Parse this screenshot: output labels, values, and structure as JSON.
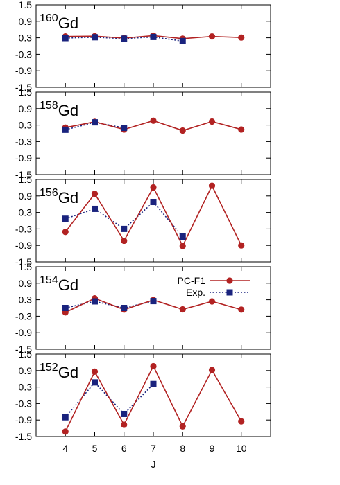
{
  "chart_data": [
    {
      "type": "line",
      "mass": "160",
      "element": "Gd",
      "x": [
        4,
        5,
        6,
        7,
        8,
        9,
        10
      ],
      "ylim": [
        -1.5,
        1.5
      ],
      "yticks": [
        "1.5",
        "0.9",
        "0.3",
        "-0.3",
        "-0.9",
        "-1.5"
      ],
      "series": [
        {
          "name": "PC-F1",
          "color": "#b22222",
          "marker": "circle",
          "style": "solid",
          "x": [
            4,
            5,
            6,
            7,
            8,
            9,
            10
          ],
          "values": [
            0.35,
            0.36,
            0.29,
            0.38,
            0.27,
            0.35,
            0.31
          ]
        },
        {
          "name": "Exp.",
          "color": "#1a237e",
          "marker": "square",
          "style": "dotted",
          "x": [
            4,
            5,
            6,
            7,
            8
          ],
          "values": [
            0.29,
            0.32,
            0.27,
            0.33,
            0.18
          ]
        }
      ]
    },
    {
      "type": "line",
      "mass": "158",
      "element": "Gd",
      "x": [
        4,
        5,
        6,
        7,
        8,
        9,
        10
      ],
      "ylim": [
        -1.5,
        1.5
      ],
      "yticks": [
        "1.5",
        "0.9",
        "0.3",
        "-0.3",
        "-0.9",
        "-1.5"
      ],
      "series": [
        {
          "name": "PC-F1",
          "color": "#b22222",
          "marker": "circle",
          "style": "solid",
          "x": [
            4,
            5,
            6,
            7,
            8,
            9,
            10
          ],
          "values": [
            0.21,
            0.42,
            0.14,
            0.46,
            0.1,
            0.43,
            0.14
          ]
        },
        {
          "name": "Exp.",
          "color": "#1a237e",
          "marker": "square",
          "style": "dotted",
          "x": [
            4,
            5,
            6
          ],
          "values": [
            0.13,
            0.4,
            0.2
          ]
        }
      ]
    },
    {
      "type": "line",
      "mass": "156",
      "element": "Gd",
      "x": [
        4,
        5,
        6,
        7,
        8,
        9,
        10
      ],
      "ylim": [
        -1.5,
        1.5
      ],
      "yticks": [
        "1.5",
        "0.9",
        "0.3",
        "-0.3",
        "-0.9",
        "-1.5"
      ],
      "series": [
        {
          "name": "PC-F1",
          "color": "#b22222",
          "marker": "circle",
          "style": "solid",
          "x": [
            4,
            5,
            6,
            7,
            8,
            9,
            10
          ],
          "values": [
            -0.41,
            0.98,
            -0.73,
            1.21,
            -0.92,
            1.27,
            -0.9
          ]
        },
        {
          "name": "Exp.",
          "color": "#1a237e",
          "marker": "square",
          "style": "dotted",
          "x": [
            4,
            5,
            6,
            7,
            8
          ],
          "values": [
            0.07,
            0.43,
            -0.3,
            0.68,
            -0.58
          ]
        }
      ]
    },
    {
      "type": "line",
      "mass": "154",
      "element": "Gd",
      "x": [
        4,
        5,
        6,
        7,
        8,
        9,
        10
      ],
      "ylim": [
        -1.5,
        1.5
      ],
      "yticks": [
        "1.5",
        "0.9",
        "0.3",
        "-0.3",
        "-0.9",
        "-1.5"
      ],
      "series": [
        {
          "name": "PC-F1",
          "color": "#b22222",
          "marker": "circle",
          "style": "solid",
          "x": [
            4,
            5,
            6,
            7,
            8,
            9,
            10
          ],
          "values": [
            -0.16,
            0.35,
            -0.06,
            0.29,
            -0.05,
            0.24,
            -0.06
          ]
        },
        {
          "name": "Exp.",
          "color": "#1a237e",
          "marker": "square",
          "style": "dotted",
          "x": [
            4,
            5,
            6,
            7
          ],
          "values": [
            0.0,
            0.24,
            0.0,
            0.25
          ]
        }
      ]
    },
    {
      "type": "line",
      "mass": "152",
      "element": "Gd",
      "x": [
        4,
        5,
        6,
        7,
        8,
        9,
        10
      ],
      "ylim": [
        -1.5,
        1.5
      ],
      "yticks": [
        "1.5",
        "0.9",
        "0.3",
        "-0.3",
        "-0.9",
        "-1.5"
      ],
      "xticks": [
        "4",
        "5",
        "6",
        "7",
        "8",
        "9",
        "10"
      ],
      "xlabel": "J",
      "series": [
        {
          "name": "PC-F1",
          "color": "#b22222",
          "marker": "circle",
          "style": "solid",
          "x": [
            4,
            5,
            6,
            7,
            8,
            9,
            10
          ],
          "values": [
            -1.32,
            0.86,
            -1.07,
            1.06,
            -1.13,
            0.92,
            -0.95
          ]
        },
        {
          "name": "Exp.",
          "color": "#1a237e",
          "marker": "square",
          "style": "dotted",
          "x": [
            4,
            5,
            6,
            7
          ],
          "values": [
            -0.8,
            0.47,
            -0.68,
            0.41
          ]
        }
      ]
    }
  ],
  "legend": {
    "placement": "panel-4 top-right",
    "entries": [
      {
        "label": "PC-F1",
        "color": "#b22222",
        "marker": "circle",
        "style": "solid"
      },
      {
        "label": "Exp.",
        "color": "#1a237e",
        "marker": "square",
        "style": "dotted"
      }
    ]
  }
}
